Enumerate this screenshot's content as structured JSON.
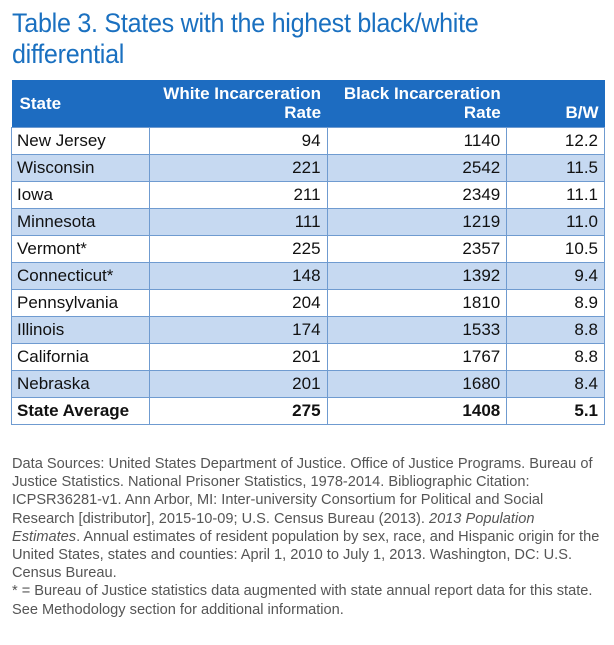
{
  "title": "Table 3. States with the highest black/white differential",
  "table": {
    "headers": {
      "state": "State",
      "white": "White Incarceration Rate",
      "black": "Black Incarceration Rate",
      "bw": "B/W"
    },
    "rows": [
      {
        "state": "New Jersey",
        "white": "94",
        "black": "1140",
        "bw": "12.2"
      },
      {
        "state": "Wisconsin",
        "white": "221",
        "black": "2542",
        "bw": "11.5"
      },
      {
        "state": "Iowa",
        "white": "211",
        "black": "2349",
        "bw": "11.1"
      },
      {
        "state": "Minnesota",
        "white": "111",
        "black": "1219",
        "bw": "11.0"
      },
      {
        "state": "Vermont*",
        "white": "225",
        "black": "2357",
        "bw": "10.5"
      },
      {
        "state": "Connecticut*",
        "white": "148",
        "black": "1392",
        "bw": "9.4"
      },
      {
        "state": "Pennsylvania",
        "white": "204",
        "black": "1810",
        "bw": "8.9"
      },
      {
        "state": "Illinois",
        "white": "174",
        "black": "1533",
        "bw": "8.8"
      },
      {
        "state": "California",
        "white": "201",
        "black": "1767",
        "bw": "8.8"
      },
      {
        "state": "Nebraska",
        "white": "201",
        "black": "1680",
        "bw": "8.4"
      }
    ],
    "average": {
      "state": "State Average",
      "white": "275",
      "black": "1408",
      "bw": "5.1"
    }
  },
  "notes": {
    "sources_before_italic": "Data Sources: United States Department of Justice. Office of Justice Programs. Bureau of Justice Statistics. National Prisoner Statistics, 1978-2014. Bibliographic Citation: ICPSR36281-v1. Ann Arbor, MI: Inter-university Consortium for Political and Social Research [distributor], 2015-10-09; U.S. Census Bureau (2013). ",
    "sources_italic": "2013 Population Estimates",
    "sources_after_italic": ". Annual estimates of resident population by sex, race, and Hispanic origin for the United States, states and counties: April 1, 2010 to July 1, 2013. Washington, DC: U.S. Census Bureau.",
    "footnote": "* = Bureau of Justice statistics data augmented with state annual report data for this state. See Methodology section for additional information."
  },
  "colors": {
    "title": "#1a70c0",
    "header_bg": "#1d6cc1",
    "alt_row_bg": "#c6d9f1",
    "border": "#6f9bd0"
  }
}
